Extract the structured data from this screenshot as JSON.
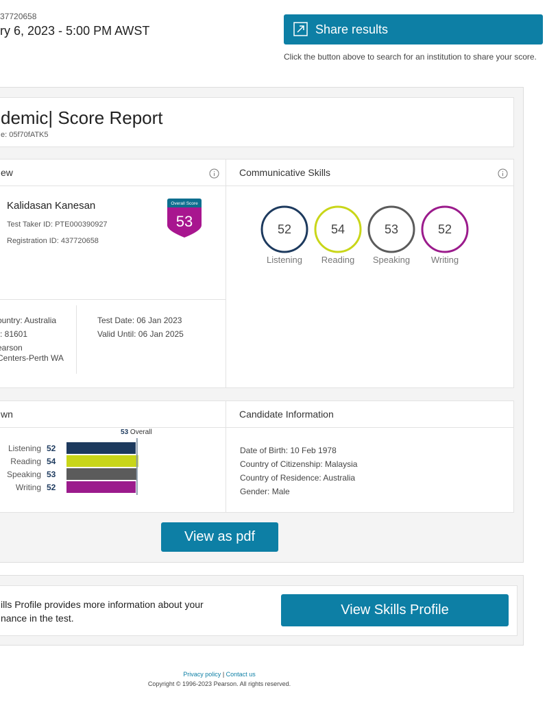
{
  "header": {
    "registration": "37720658",
    "datetime": "ry 6, 2023 - 5:00 PM AWST"
  },
  "share": {
    "button": "Share results",
    "caption": "Click the button above to search for an institution to share your score."
  },
  "report": {
    "title_prefix": "demic|",
    "title": "Score Report",
    "code": "e: 05f70fATK5"
  },
  "overview": {
    "heading": "ew",
    "name": "Kalidasan Kanesan",
    "test_taker_id": "Test Taker ID: PTE000390927",
    "registration_id": "Registration ID: 437720658",
    "overall_label": "Overall Score",
    "overall_score": 53,
    "left_details": [
      "ountry: Australia",
      "): 81601",
      "earson",
      "Centers-Perth WA"
    ],
    "right_details": [
      "Test Date: 06 Jan 2023",
      "Valid Until: 06 Jan 2025"
    ]
  },
  "communicative": {
    "heading": "Communicative Skills"
  },
  "skills": [
    {
      "name": "Listening",
      "score": 52,
      "color": "#1d3a5e"
    },
    {
      "name": "Reading",
      "score": 54,
      "color": "#c9d619"
    },
    {
      "name": "Speaking",
      "score": 53,
      "color": "#5b5b5b"
    },
    {
      "name": "Writing",
      "score": 52,
      "color": "#9b1b8c"
    }
  ],
  "breakdown": {
    "heading": "wn",
    "overall_word": "Overall"
  },
  "candidate": {
    "heading": "Candidate Information",
    "lines": [
      "Date of Birth: 10 Feb 1978",
      "Country of Citizenship: Malaysia",
      "Country of Residence: Australia",
      "Gender: Male"
    ]
  },
  "pdf_button": "View as pdf",
  "skills_profile": {
    "text": [
      "ills Profile provides more information about your",
      "nance in the test."
    ],
    "button": "View Skills Profile"
  },
  "footer": {
    "privacy": "Privacy policy",
    "separator": "|",
    "contact": "Contact us",
    "copyright": "Copyright © 1996-2023 Pearson. All rights reserved."
  }
}
